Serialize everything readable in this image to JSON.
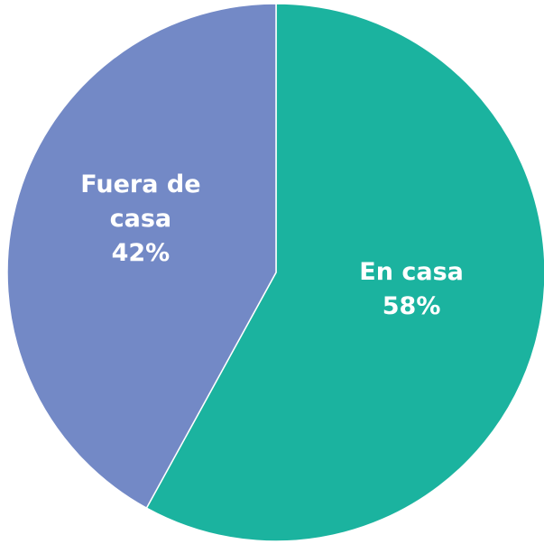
{
  "chart_data": {
    "type": "pie",
    "categories": [
      "En casa",
      "Fuera de casa"
    ],
    "values": [
      58,
      42
    ],
    "value_labels": [
      "58%",
      "42%"
    ],
    "colors": [
      "#1bb39f",
      "#7389c6"
    ]
  }
}
